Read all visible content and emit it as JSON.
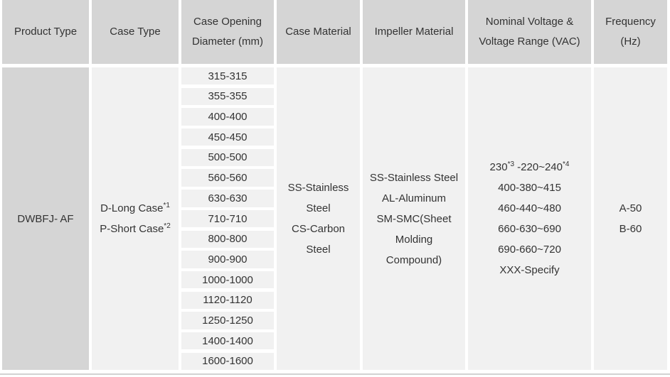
{
  "colors": {
    "header_bg": "#d5d5d5",
    "cell_bg": "#f1f1f1",
    "gap": "#ffffff",
    "text": "#333333",
    "bottom_rule": "#d2d2d2"
  },
  "table": {
    "columns": [
      {
        "label": "Product Type"
      },
      {
        "label": "Case Opening Diameter (mm)"
      },
      {
        "label": "Case Type"
      },
      {
        "label": "Case Material"
      },
      {
        "label": "Impeller Material"
      },
      {
        "label": "Nominal Voltage & Voltage Range (VAC)"
      },
      {
        "label": "Frequency (Hz)"
      }
    ],
    "product_type": "DWBFJ- AF",
    "case_types": [
      {
        "parts": [
          {
            "text": "D-Long Case"
          },
          {
            "sup": "*1"
          }
        ]
      },
      {
        "parts": [
          {
            "text": "P-Short Case"
          },
          {
            "sup": "*2"
          }
        ]
      }
    ],
    "case_opening_diameters": [
      "315-315",
      "355-355",
      "400-400",
      "450-450",
      "500-500",
      "560-560",
      "630-630",
      "710-710",
      "800-800",
      "900-900",
      "1000-1000",
      "1120-1120",
      "1250-1250",
      "1400-1400",
      "1600-1600"
    ],
    "case_material_lines": [
      "SS-Stainless",
      "Steel",
      "CS-Carbon",
      "Steel"
    ],
    "impeller_material_lines": [
      "SS-Stainless Steel",
      "AL-Aluminum",
      "SM-SMC(Sheet",
      "Molding",
      "Compound)"
    ],
    "voltage_options": [
      {
        "parts": [
          {
            "text": "230"
          },
          {
            "sup": "*3"
          },
          {
            "text": " -220~240"
          },
          {
            "sup": "*4"
          }
        ]
      },
      {
        "parts": [
          {
            "text": "400-380~415"
          }
        ]
      },
      {
        "parts": [
          {
            "text": "460-440~480"
          }
        ]
      },
      {
        "parts": [
          {
            "text": "660-630~690"
          }
        ]
      },
      {
        "parts": [
          {
            "text": "690-660~720"
          }
        ]
      },
      {
        "parts": [
          {
            "text": "XXX-Specify"
          }
        ]
      }
    ],
    "frequencies": [
      "A-50",
      "B-60"
    ]
  }
}
